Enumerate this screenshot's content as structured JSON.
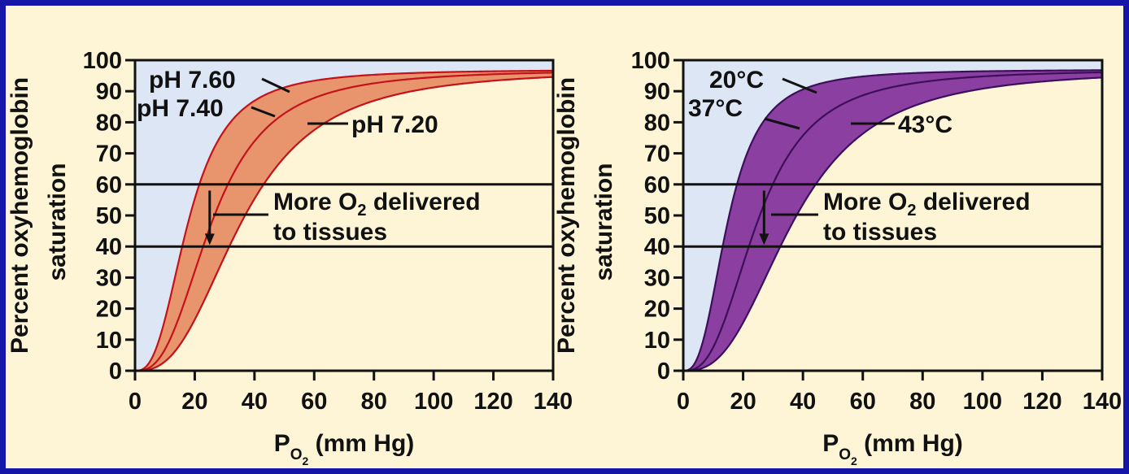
{
  "chart_data": [
    {
      "type": "line",
      "xlabel": "P",
      "xlabel_sub": "O2",
      "xlabel_unit": " (mm Hg)",
      "ylabel_line1": "Percent oxyhemoglobin",
      "ylabel_line2": "saturation",
      "xlim": [
        0,
        140
      ],
      "ylim": [
        0,
        100
      ],
      "xticks": [
        "0",
        "20",
        "40",
        "60",
        "80",
        "100",
        "120",
        "140"
      ],
      "yticks": [
        "0",
        "10",
        "20",
        "30",
        "40",
        "50",
        "60",
        "70",
        "80",
        "90",
        "100"
      ],
      "reference_lines": [
        60,
        40
      ],
      "colors": {
        "edge": "#c4121a",
        "band": "#e8956d",
        "left_bg": "#dde6f4",
        "bg": "#fdf5d6"
      },
      "series": [
        {
          "name": "pH 7.60",
          "p50": 18,
          "n": 2.7,
          "max": 97
        },
        {
          "name": "pH 7.40",
          "p50": 26,
          "n": 2.7,
          "max": 97
        },
        {
          "name": "pH 7.20",
          "p50": 36,
          "n": 2.7,
          "max": 97
        }
      ],
      "annotation": {
        "line1": "More O",
        "sub": "2",
        "line1_end": " delivered",
        "line2": "to tissues",
        "arrow_x": 25,
        "arrow_from": 58,
        "arrow_to": 41
      }
    },
    {
      "type": "line",
      "xlabel": "P",
      "xlabel_sub": "O2",
      "xlabel_unit": " (mm Hg)",
      "ylabel_line1": "Percent oxyhemoglobin",
      "ylabel_line2": "saturation",
      "xlim": [
        0,
        140
      ],
      "ylim": [
        0,
        100
      ],
      "xticks": [
        "0",
        "20",
        "40",
        "60",
        "80",
        "100",
        "120",
        "140"
      ],
      "yticks": [
        "0",
        "10",
        "20",
        "30",
        "40",
        "50",
        "60",
        "70",
        "80",
        "90",
        "100"
      ],
      "reference_lines": [
        60,
        40
      ],
      "colors": {
        "edge": "#3d0f5a",
        "band": "#8b3fa0",
        "left_bg": "#dde6f4",
        "bg": "#fdf5d6"
      },
      "series": [
        {
          "name": "20°C",
          "p50": 15,
          "n": 2.7,
          "max": 97
        },
        {
          "name": "37°C",
          "p50": 25,
          "n": 2.7,
          "max": 97
        },
        {
          "name": "43°C",
          "p50": 37,
          "n": 2.7,
          "max": 97
        }
      ],
      "annotation": {
        "line1": "More O",
        "sub": "2",
        "line1_end": " delivered",
        "line2": "to tissues",
        "arrow_x": 27,
        "arrow_from": 58,
        "arrow_to": 41
      }
    }
  ]
}
